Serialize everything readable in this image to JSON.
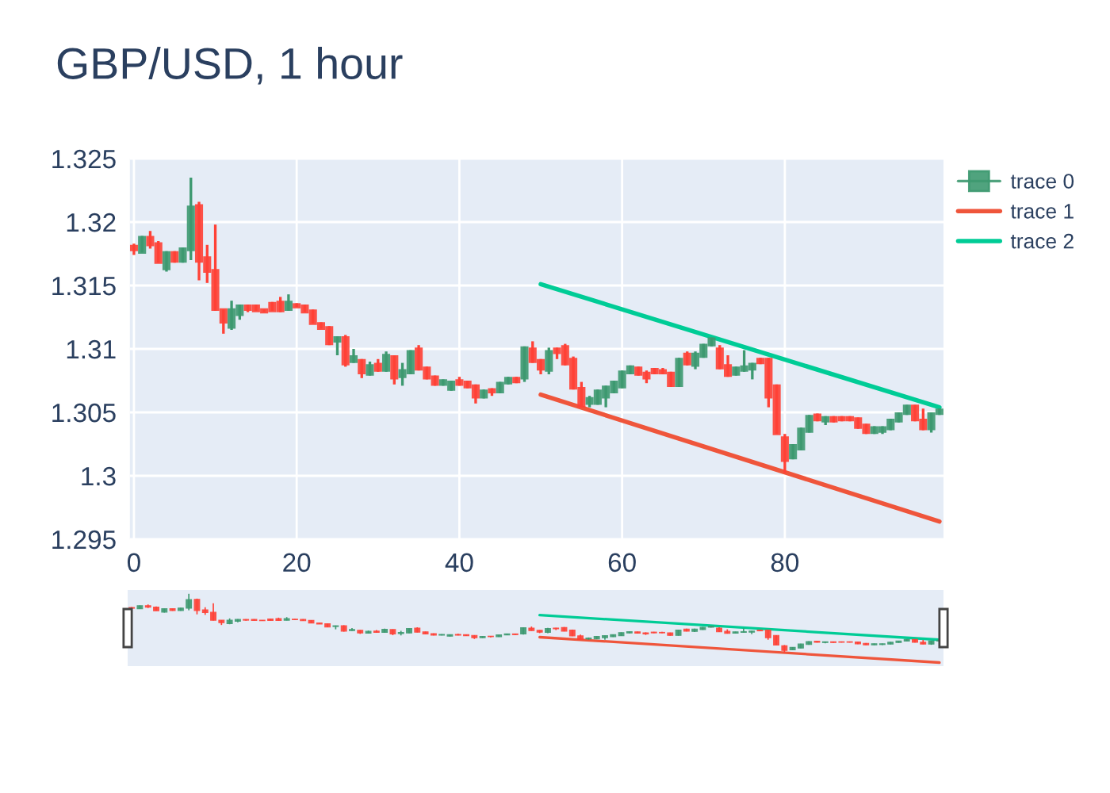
{
  "chart_data": {
    "type": "candlestick",
    "title": "GBP/USD, 1 hour",
    "xlim": [
      -0.5,
      99.5
    ],
    "xticks": [
      0,
      20,
      40,
      60,
      80
    ],
    "ylim": [
      1.295,
      1.325
    ],
    "yticks": [
      1.295,
      1.3,
      1.305,
      1.31,
      1.315,
      1.32,
      1.325
    ],
    "grid": true,
    "legend": "top right",
    "series": [
      {
        "name": "trace 0",
        "colors": [
          "#ff4136",
          "#3d9970",
          "#ff4136",
          "#ff4136",
          "#3d9970",
          "#ff4136",
          "#3d9970",
          "#3d9970",
          "#ff4136",
          "#ff4136",
          "#ff4136",
          "#ff4136",
          "#3d9970",
          "#3d9970",
          "#ff4136",
          "#ff4136",
          "#ff4136",
          "#ff4136",
          "#ff4136",
          "#3d9970",
          "#ff4136",
          "#ff4136",
          "#ff4136",
          "#ff4136",
          "#ff4136",
          "#3d9970",
          "#ff4136",
          "#3d9970",
          "#ff4136",
          "#3d9970",
          "#ff4136",
          "#3d9970",
          "#ff4136",
          "#3d9970",
          "#3d9970",
          "#ff4136",
          "#ff4136",
          "#ff4136",
          "#3d9970",
          "#3d9970",
          "#ff4136",
          "#ff4136",
          "#ff4136",
          "#3d9970",
          "#ff4136",
          "#3d9970",
          "#3d9970",
          "#ff4136",
          "#3d9970",
          "#ff4136",
          "#ff4136",
          "#3d9970",
          "#ff4136",
          "#ff4136",
          "#ff4136",
          "#ff4136",
          "#3d9970",
          "#3d9970",
          "#3d9970",
          "#3d9970",
          "#3d9970",
          "#3d9970",
          "#ff4136",
          "#ff4136",
          "#ff4136",
          "#ff4136",
          "#ff4136",
          "#3d9970",
          "#ff4136",
          "#3d9970",
          "#3d9970",
          "#3d9970",
          "#ff4136",
          "#ff4136",
          "#3d9970",
          "#3d9970",
          "#3d9970",
          "#ff4136",
          "#ff4136",
          "#ff4136",
          "#ff4136",
          "#3d9970",
          "#3d9970",
          "#3d9970",
          "#ff4136",
          "#3d9970",
          "#ff4136",
          "#ff4136",
          "#ff4136",
          "#ff4136",
          "#ff4136",
          "#3d9970",
          "#3d9970",
          "#3d9970",
          "#3d9970",
          "#3d9970",
          "#ff4136",
          "#ff4136",
          "#3d9970",
          "#3d9970"
        ],
        "x": [
          0,
          1,
          2,
          3,
          4,
          5,
          6,
          7,
          8,
          9,
          10,
          11,
          12,
          13,
          14,
          15,
          16,
          17,
          18,
          19,
          20,
          21,
          22,
          23,
          24,
          25,
          26,
          27,
          28,
          29,
          30,
          31,
          32,
          33,
          34,
          35,
          36,
          37,
          38,
          39,
          40,
          41,
          42,
          43,
          44,
          45,
          46,
          47,
          48,
          49,
          50,
          51,
          52,
          53,
          54,
          55,
          56,
          57,
          58,
          59,
          60,
          61,
          62,
          63,
          64,
          65,
          66,
          67,
          68,
          69,
          70,
          71,
          72,
          73,
          74,
          75,
          76,
          77,
          78,
          79,
          80,
          81,
          82,
          83,
          84,
          85,
          86,
          87,
          88,
          89,
          90,
          91,
          92,
          93,
          94,
          95,
          96,
          97,
          98,
          99
        ],
        "ohlc": [
          [
            1.3181,
            1.3183,
            1.3174,
            1.3178
          ],
          [
            1.3176,
            1.3189,
            1.3176,
            1.3188
          ],
          [
            1.3188,
            1.3193,
            1.3179,
            1.3182
          ],
          [
            1.3183,
            1.3185,
            1.3168,
            1.3168
          ],
          [
            1.3163,
            1.3177,
            1.3161,
            1.3176
          ],
          [
            1.3176,
            1.3177,
            1.3168,
            1.3169
          ],
          [
            1.3169,
            1.318,
            1.3168,
            1.3179
          ],
          [
            1.3178,
            1.3235,
            1.317,
            1.3212
          ],
          [
            1.3213,
            1.3216,
            1.3154,
            1.3169
          ],
          [
            1.3172,
            1.3182,
            1.3152,
            1.3161
          ],
          [
            1.3162,
            1.3198,
            1.313,
            1.3131
          ],
          [
            1.3131,
            1.3131,
            1.3112,
            1.3121
          ],
          [
            1.3117,
            1.3138,
            1.3115,
            1.3131
          ],
          [
            1.3127,
            1.3135,
            1.3123,
            1.3134
          ],
          [
            1.3134,
            1.3135,
            1.3129,
            1.3131
          ],
          [
            1.3134,
            1.3135,
            1.313,
            1.313
          ],
          [
            1.3131,
            1.3131,
            1.3129,
            1.3129
          ],
          [
            1.3136,
            1.3137,
            1.313,
            1.313
          ],
          [
            1.3137,
            1.3141,
            1.3129,
            1.313
          ],
          [
            1.3131,
            1.3143,
            1.313,
            1.3137
          ],
          [
            1.3135,
            1.3136,
            1.3133,
            1.3133
          ],
          [
            1.3134,
            1.3135,
            1.3129,
            1.3129
          ],
          [
            1.313,
            1.3131,
            1.312,
            1.312
          ],
          [
            1.312,
            1.3121,
            1.3116,
            1.3116
          ],
          [
            1.3117,
            1.3118,
            1.3103,
            1.3104
          ],
          [
            1.3106,
            1.311,
            1.3095,
            1.3109
          ],
          [
            1.3109,
            1.3111,
            1.3086,
            1.3088
          ],
          [
            1.309,
            1.31,
            1.3089,
            1.3094
          ],
          [
            1.3091,
            1.3092,
            1.3077,
            1.3081
          ],
          [
            1.308,
            1.309,
            1.3079,
            1.3087
          ],
          [
            1.3088,
            1.3092,
            1.3082,
            1.3083
          ],
          [
            1.3083,
            1.3098,
            1.3082,
            1.3095
          ],
          [
            1.3094,
            1.3095,
            1.3072,
            1.3077
          ],
          [
            1.3078,
            1.3089,
            1.3071,
            1.3083
          ],
          [
            1.3081,
            1.3099,
            1.308,
            1.3098
          ],
          [
            1.31,
            1.3103,
            1.3083,
            1.3084
          ],
          [
            1.3085,
            1.3086,
            1.3076,
            1.3077
          ],
          [
            1.3078,
            1.3079,
            1.3071,
            1.3072
          ],
          [
            1.3072,
            1.3076,
            1.3071,
            1.3075
          ],
          [
            1.3068,
            1.3075,
            1.3067,
            1.3074
          ],
          [
            1.3075,
            1.3078,
            1.3071,
            1.3072
          ],
          [
            1.3074,
            1.3075,
            1.3069,
            1.307
          ],
          [
            1.3071,
            1.3072,
            1.3057,
            1.3062
          ],
          [
            1.3062,
            1.3068,
            1.3061,
            1.3067
          ],
          [
            1.3068,
            1.3069,
            1.3063,
            1.3066
          ],
          [
            1.3066,
            1.3074,
            1.3065,
            1.3073
          ],
          [
            1.3073,
            1.3078,
            1.3072,
            1.3077
          ],
          [
            1.3077,
            1.3078,
            1.3073,
            1.3074
          ],
          [
            1.3077,
            1.3102,
            1.3074,
            1.3101
          ],
          [
            1.31,
            1.3106,
            1.3089,
            1.309
          ],
          [
            1.3091,
            1.3092,
            1.308,
            1.3084
          ],
          [
            1.3083,
            1.3101,
            1.308,
            1.3098
          ],
          [
            1.31,
            1.3101,
            1.3092,
            1.3097
          ],
          [
            1.3102,
            1.3104,
            1.3087,
            1.3088
          ],
          [
            1.3092,
            1.3094,
            1.3068,
            1.3069
          ],
          [
            1.3069,
            1.3074,
            1.3054,
            1.3055
          ],
          [
            1.3057,
            1.3063,
            1.3054,
            1.3061
          ],
          [
            1.3057,
            1.3068,
            1.3056,
            1.3067
          ],
          [
            1.3062,
            1.3071,
            1.3054,
            1.307
          ],
          [
            1.3066,
            1.3075,
            1.3065,
            1.3074
          ],
          [
            1.307,
            1.3083,
            1.3069,
            1.3082
          ],
          [
            1.3081,
            1.3087,
            1.308,
            1.3086
          ],
          [
            1.3085,
            1.3086,
            1.3079,
            1.308
          ],
          [
            1.3081,
            1.3083,
            1.3073,
            1.3077
          ],
          [
            1.3084,
            1.3085,
            1.308,
            1.3081
          ],
          [
            1.3083,
            1.3085,
            1.308,
            1.3081
          ],
          [
            1.3081,
            1.3082,
            1.307,
            1.3071
          ],
          [
            1.3071,
            1.3093,
            1.307,
            1.3092
          ],
          [
            1.3096,
            1.3098,
            1.3087,
            1.3088
          ],
          [
            1.3087,
            1.3098,
            1.3084,
            1.3096
          ],
          [
            1.3094,
            1.3104,
            1.3093,
            1.3103
          ],
          [
            1.3103,
            1.3109,
            1.3102,
            1.3108
          ],
          [
            1.31,
            1.3103,
            1.3084,
            1.3085
          ],
          [
            1.3087,
            1.3095,
            1.3078,
            1.3079
          ],
          [
            1.308,
            1.3086,
            1.3079,
            1.3085
          ],
          [
            1.3083,
            1.3099,
            1.3082,
            1.3086
          ],
          [
            1.3084,
            1.3089,
            1.3076,
            1.3088
          ],
          [
            1.3092,
            1.3093,
            1.3088,
            1.3089
          ],
          [
            1.3092,
            1.3093,
            1.3054,
            1.3062
          ],
          [
            1.3071,
            1.3072,
            1.3033,
            1.3033
          ],
          [
            1.303,
            1.3033,
            1.3002,
            1.3012
          ],
          [
            1.3014,
            1.3025,
            1.3013,
            1.3024
          ],
          [
            1.3021,
            1.3038,
            1.302,
            1.3037
          ],
          [
            1.3035,
            1.3048,
            1.3034,
            1.3047
          ],
          [
            1.3048,
            1.3049,
            1.3043,
            1.3044
          ],
          [
            1.3043,
            1.3047,
            1.304,
            1.3046
          ],
          [
            1.3046,
            1.3047,
            1.3042,
            1.3043
          ],
          [
            1.3046,
            1.3047,
            1.3043,
            1.3044
          ],
          [
            1.3046,
            1.3047,
            1.3043,
            1.3044
          ],
          [
            1.3045,
            1.3046,
            1.3037,
            1.3038
          ],
          [
            1.304,
            1.3041,
            1.3033,
            1.3034
          ],
          [
            1.3034,
            1.3039,
            1.3033,
            1.3038
          ],
          [
            1.3035,
            1.3039,
            1.3033,
            1.3038
          ],
          [
            1.3037,
            1.3045,
            1.3036,
            1.3044
          ],
          [
            1.3043,
            1.305,
            1.3042,
            1.3049
          ],
          [
            1.3049,
            1.3056,
            1.3048,
            1.3055
          ],
          [
            1.3055,
            1.3056,
            1.3043,
            1.3044
          ],
          [
            1.3044,
            1.3053,
            1.3036,
            1.3037
          ],
          [
            1.3037,
            1.305,
            1.3034,
            1.3049
          ],
          [
            1.3049,
            1.3053,
            1.3048,
            1.3052
          ]
        ]
      },
      {
        "name": "trace 1",
        "type": "line",
        "color": "#ef553b",
        "x": [
          50,
          99
        ],
        "values": [
          1.3064,
          1.2964
        ]
      },
      {
        "name": "trace 2",
        "type": "line",
        "color": "#00cc96",
        "x": [
          50,
          99
        ],
        "values": [
          1.3151,
          1.3054
        ]
      }
    ]
  }
}
